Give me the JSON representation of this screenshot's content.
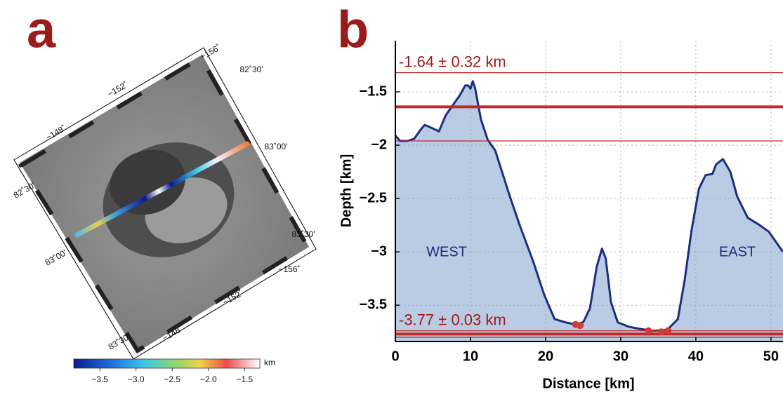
{
  "panel_a": {
    "label": "a",
    "map_labels": [
      "−156˚",
      "−152˚",
      "−148˚",
      "82˚30'",
      "83˚00'",
      "83˚30'",
      "−156˚",
      "−152˚",
      "−148˚",
      "83˚30'",
      "83˚00'",
      "82˚30'"
    ],
    "colorbar": {
      "lim": [
        -3.86,
        -1.29
      ],
      "ticks": [
        {
          "value": -3.5,
          "label": "−3.5"
        },
        {
          "value": -3,
          "label": "−3.0"
        },
        {
          "value": -2.5,
          "label": "−2.5"
        },
        {
          "value": -2,
          "label": "−2.0"
        },
        {
          "value": -1.5,
          "label": "−1.5"
        }
      ],
      "unit": "km"
    }
  },
  "chart_data": {
    "type": "area",
    "panel_label": "b",
    "x_label": "Distance [km]",
    "y_label": "Depth [km]",
    "xlim": [
      0,
      51.6
    ],
    "xticks": [
      0,
      10,
      20,
      30,
      40,
      50
    ],
    "ylim": [
      -3.84,
      -1.02
    ],
    "yticks": [
      {
        "value": -3.5,
        "label": "−3.5"
      },
      {
        "value": -3,
        "label": "−3"
      },
      {
        "value": -2.5,
        "label": "−2.5"
      },
      {
        "value": -2,
        "label": "−2"
      },
      {
        "value": -1.5,
        "label": "−1.5"
      }
    ],
    "grid": true,
    "series": [
      {
        "color": "#1c2f7e",
        "fill": "#b9cce3",
        "x": [
          0,
          0.65,
          1.6,
          2.5,
          3.3,
          3.9,
          4.9,
          5.8,
          6.7,
          7.7,
          8.6,
          9.3,
          9.7,
          10.0,
          10.3,
          10.6,
          11.4,
          12.3,
          13.3,
          14.2,
          15.1,
          16.5,
          18.4,
          19.8,
          21.2,
          22.6,
          24.0,
          25.0,
          25.9,
          26.8,
          27.5,
          28.0,
          28.7,
          29.6,
          31.0,
          32.4,
          34.3,
          36.2,
          37.6,
          38.5,
          39.4,
          40.4,
          41.3,
          42.2,
          42.7,
          43.6,
          44.6,
          45.5,
          46.9,
          48.3,
          49.7,
          50.7,
          51.6
        ],
        "values": [
          -1.91,
          -1.96,
          -1.96,
          -1.94,
          -1.86,
          -1.81,
          -1.84,
          -1.87,
          -1.72,
          -1.62,
          -1.53,
          -1.44,
          -1.44,
          -1.47,
          -1.4,
          -1.46,
          -1.76,
          -1.95,
          -2.05,
          -2.25,
          -2.45,
          -2.74,
          -3.1,
          -3.4,
          -3.63,
          -3.66,
          -3.68,
          -3.66,
          -3.53,
          -3.14,
          -2.97,
          -3.06,
          -3.47,
          -3.66,
          -3.7,
          -3.72,
          -3.74,
          -3.73,
          -3.63,
          -3.27,
          -2.81,
          -2.41,
          -2.28,
          -2.27,
          -2.18,
          -2.13,
          -2.25,
          -2.48,
          -2.68,
          -2.74,
          -2.81,
          -2.91,
          -3.0
        ]
      }
    ],
    "reference_lines": [
      {
        "value": -1.64,
        "error": 0.32,
        "label": "-1.64 ± 0.32 km",
        "color": "#c0282a"
      },
      {
        "value": -3.77,
        "error": 0.03,
        "label": "-3.77 ± 0.03 km",
        "color": "#c0282a"
      }
    ],
    "points": {
      "color": "#d03a38",
      "x": [
        24.0,
        24.6,
        33.7,
        35.4,
        36.3
      ],
      "y": [
        -3.68,
        -3.69,
        -3.74,
        -3.75,
        -3.74
      ]
    },
    "annotations": [
      "WEST",
      "EAST"
    ]
  }
}
